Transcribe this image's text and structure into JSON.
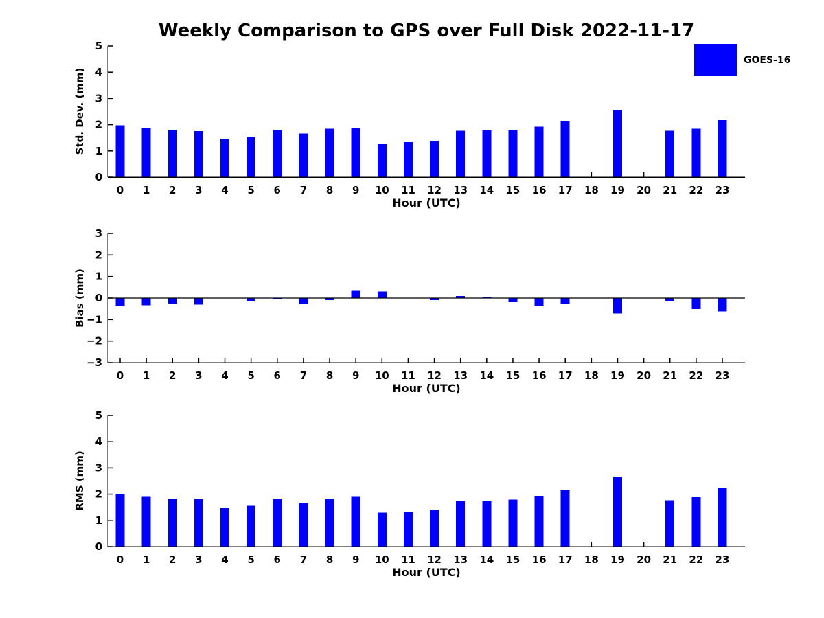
{
  "figure": {
    "title": "Weekly Comparison to GPS over Full Disk 2022-11-17",
    "background": "#ffffff",
    "bar_color": "#0000ff",
    "legend": {
      "label": "GOES-16",
      "color": "#0000ff",
      "position": "upper right"
    }
  },
  "chart_data": [
    {
      "id": "stddev",
      "type": "bar",
      "series_name": "GOES-16",
      "ylabel": "Std. Dev. (mm)",
      "xlabel": "Hour (UTC)",
      "ylim": [
        0,
        5
      ],
      "yticks": [
        0,
        1,
        2,
        3,
        4,
        5
      ],
      "grid": false,
      "categories": [
        "0",
        "1",
        "2",
        "3",
        "4",
        "5",
        "6",
        "7",
        "8",
        "9",
        "10",
        "11",
        "12",
        "13",
        "14",
        "15",
        "16",
        "17",
        "18",
        "19",
        "20",
        "21",
        "22",
        "23"
      ],
      "values": [
        1.97,
        1.86,
        1.81,
        1.76,
        1.47,
        1.55,
        1.81,
        1.66,
        1.84,
        1.86,
        1.28,
        1.34,
        1.39,
        1.77,
        1.78,
        1.81,
        1.93,
        2.15,
        null,
        2.56,
        null,
        1.77,
        1.84,
        2.17
      ]
    },
    {
      "id": "bias",
      "type": "bar",
      "series_name": "GOES-16",
      "ylabel": "Bias (mm)",
      "xlabel": "Hour (UTC)",
      "ylim": [
        -3,
        3
      ],
      "yticks": [
        -3,
        -2,
        -1,
        0,
        1,
        2,
        3
      ],
      "grid": false,
      "categories": [
        "0",
        "1",
        "2",
        "3",
        "4",
        "5",
        "6",
        "7",
        "8",
        "9",
        "10",
        "11",
        "12",
        "13",
        "14",
        "15",
        "16",
        "17",
        "18",
        "19",
        "20",
        "21",
        "22",
        "23"
      ],
      "values": [
        -0.35,
        -0.33,
        -0.26,
        -0.31,
        0.0,
        -0.12,
        -0.04,
        -0.29,
        -0.1,
        0.33,
        0.3,
        0.0,
        -0.1,
        0.1,
        0.05,
        -0.19,
        -0.35,
        -0.27,
        null,
        -0.72,
        null,
        -0.13,
        -0.51,
        -0.62
      ]
    },
    {
      "id": "rms",
      "type": "bar",
      "series_name": "GOES-16",
      "ylabel": "RMS (mm)",
      "xlabel": "Hour (UTC)",
      "ylim": [
        0,
        5
      ],
      "yticks": [
        0,
        1,
        2,
        3,
        4,
        5
      ],
      "grid": false,
      "categories": [
        "0",
        "1",
        "2",
        "3",
        "4",
        "5",
        "6",
        "7",
        "8",
        "9",
        "10",
        "11",
        "12",
        "13",
        "14",
        "15",
        "16",
        "17",
        "18",
        "19",
        "20",
        "21",
        "22",
        "23"
      ],
      "values": [
        2.0,
        1.9,
        1.83,
        1.8,
        1.46,
        1.56,
        1.8,
        1.66,
        1.83,
        1.9,
        1.3,
        1.33,
        1.4,
        1.74,
        1.76,
        1.79,
        1.94,
        2.15,
        null,
        2.66,
        null,
        1.77,
        1.89,
        2.24
      ]
    }
  ]
}
